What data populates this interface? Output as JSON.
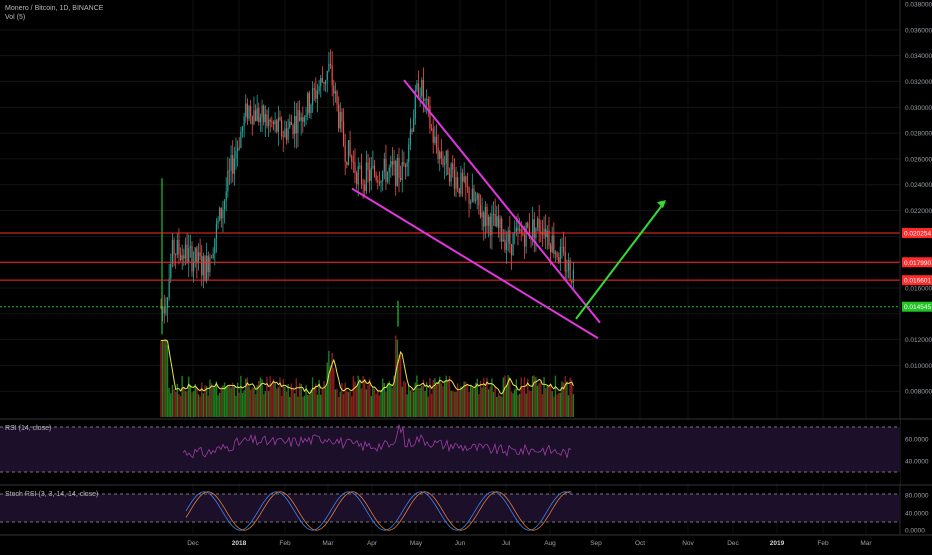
{
  "symbol_line": "Monero / Bitcoin, 1D, BINANCE",
  "vol_label": "Vol (5)",
  "rsi_label": "RSI (14, close)",
  "stoch_label": "Stoch RSI (3, 3, 14, 14, close)",
  "price_axis": {
    "ticks": [
      "0.038000",
      "0.036000",
      "0.034000",
      "0.032000",
      "0.030000",
      "0.028000",
      "0.026000",
      "0.024000",
      "0.022000",
      "0.016000",
      "0.012000",
      "0.010000",
      "0.008000"
    ],
    "levels": [
      {
        "label": "0.020254",
        "value": 0.020254,
        "color": "#ff2a2a"
      },
      {
        "label": "0.017990",
        "value": 0.01799,
        "color": "#ff2a2a"
      },
      {
        "label": "0.016601",
        "value": 0.016601,
        "color": "#ff2a2a"
      },
      {
        "label": "0.014545",
        "value": 0.014545,
        "color": "#22c322",
        "dotted": true
      }
    ]
  },
  "rsi_axis": {
    "ticks": [
      "60.0000",
      "40.0000"
    ]
  },
  "stoch_axis": {
    "ticks": [
      "80.0000",
      "40.0000",
      "0.0000"
    ]
  },
  "time_axis": [
    {
      "label": "Dec",
      "bold": false
    },
    {
      "label": "2018",
      "bold": true
    },
    {
      "label": "Feb",
      "bold": false
    },
    {
      "label": "Mar",
      "bold": false
    },
    {
      "label": "Apr",
      "bold": false
    },
    {
      "label": "May",
      "bold": false
    },
    {
      "label": "Jun",
      "bold": false
    },
    {
      "label": "Jul",
      "bold": false
    },
    {
      "label": "Aug",
      "bold": false
    },
    {
      "label": "Sep",
      "bold": false
    },
    {
      "label": "Oct",
      "bold": false
    },
    {
      "label": "Nov",
      "bold": false
    },
    {
      "label": "Dec",
      "bold": false
    },
    {
      "label": "2019",
      "bold": true
    },
    {
      "label": "Feb",
      "bold": false
    },
    {
      "label": "Mar",
      "bold": false
    }
  ],
  "chart_data": {
    "type": "candlestick",
    "title": "Monero / Bitcoin, 1D, BINANCE",
    "ylim": [
      0.006,
      0.038
    ],
    "close_path": [
      [
        "2017-11-20",
        0.0145
      ],
      [
        "2017-11-25",
        0.019
      ],
      [
        "2017-12-05",
        0.0185
      ],
      [
        "2017-12-15",
        0.0175
      ],
      [
        "2017-12-25",
        0.022
      ],
      [
        "2018-01-01",
        0.026
      ],
      [
        "2018-01-10",
        0.03
      ],
      [
        "2018-01-20",
        0.029
      ],
      [
        "2018-02-01",
        0.028
      ],
      [
        "2018-02-15",
        0.03
      ],
      [
        "2018-03-01",
        0.033
      ],
      [
        "2018-03-10",
        0.027
      ],
      [
        "2018-03-20",
        0.0245
      ],
      [
        "2018-04-01",
        0.025
      ],
      [
        "2018-04-15",
        0.025
      ],
      [
        "2018-04-25",
        0.032
      ],
      [
        "2018-05-05",
        0.027
      ],
      [
        "2018-05-20",
        0.024
      ],
      [
        "2018-06-05",
        0.0215
      ],
      [
        "2018-06-20",
        0.0195
      ],
      [
        "2018-07-01",
        0.0205
      ],
      [
        "2018-07-10",
        0.021
      ],
      [
        "2018-07-20",
        0.0185
      ],
      [
        "2018-08-01",
        0.0165
      ],
      [
        "2018-08-12",
        0.0145
      ]
    ],
    "horizontal_levels": [
      0.020254,
      0.01799,
      0.016601,
      0.014545
    ],
    "annotations": [
      "falling wedge (magenta)",
      "projected breakout arrow (green)"
    ]
  },
  "colors": {
    "up": "#26a69a",
    "down": "#ef5350",
    "green_bright": "#22c322",
    "wedge": "#e036e0",
    "arrow": "#33dd33",
    "vol_ma": "#e8e84a",
    "rsi_line": "#9c3ea0",
    "stoch_k": "#3b82f6",
    "stoch_d": "#e07b39",
    "panel_bg": "#1b0f2a"
  }
}
